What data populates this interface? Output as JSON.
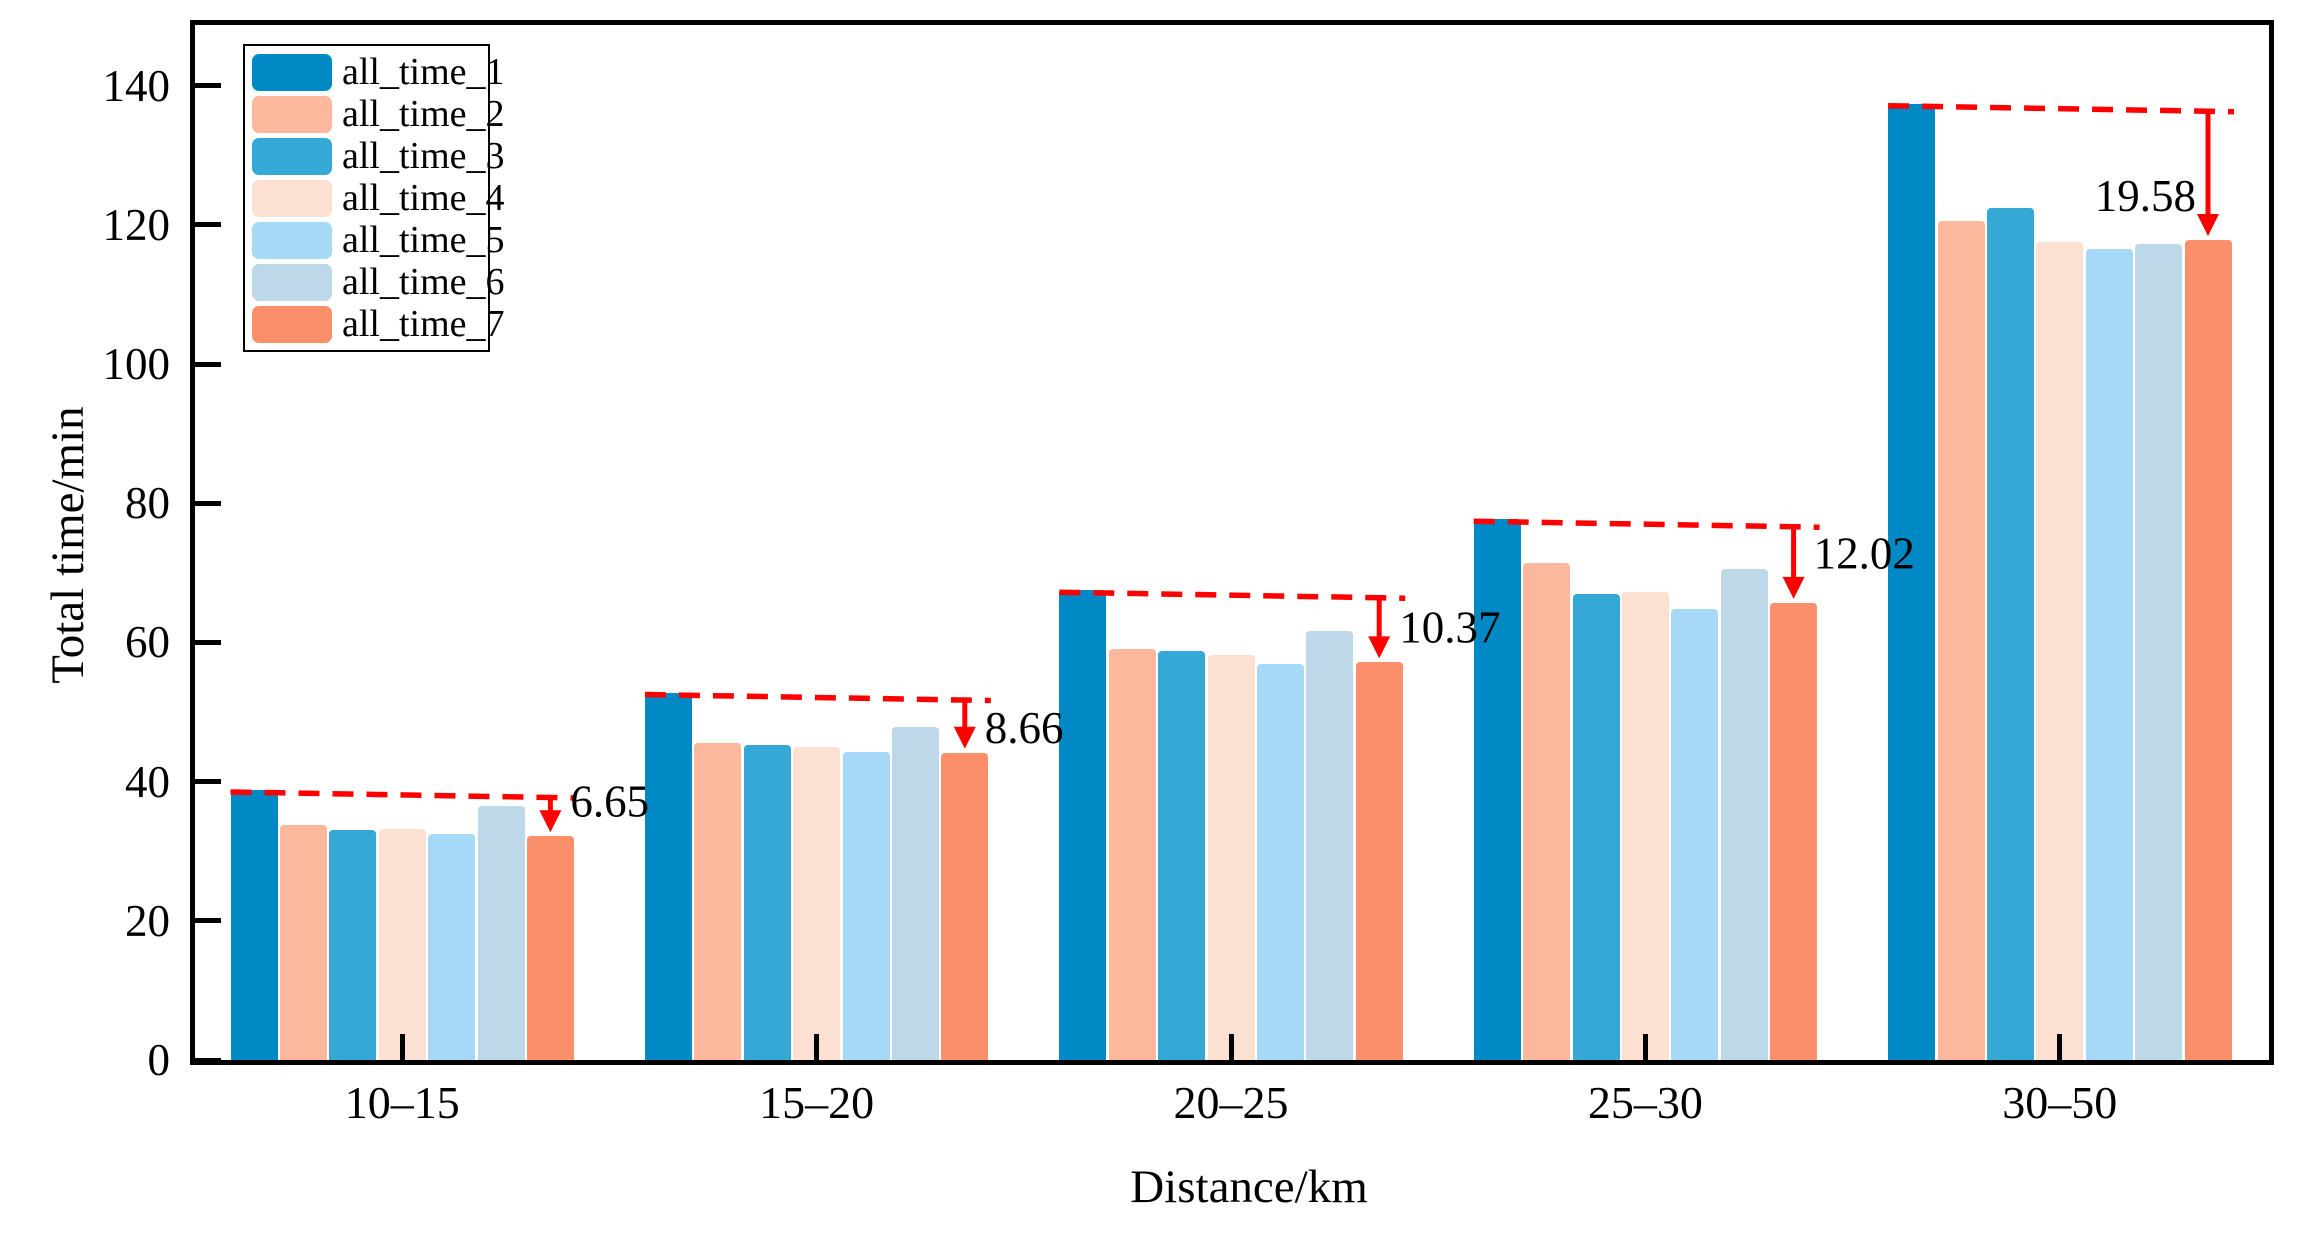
{
  "chart_data": {
    "type": "bar",
    "title": "",
    "xlabel": "Distance/km",
    "ylabel": "Total time/min",
    "categories": [
      "10–15",
      "15–20",
      "20–25",
      "25–30",
      "30–50"
    ],
    "y_ticks": [
      0,
      20,
      40,
      60,
      80,
      100,
      120,
      140
    ],
    "ylim": [
      0,
      148.7
    ],
    "grid": false,
    "legend_position": "upper-left",
    "series": [
      {
        "name": "all_time_1",
        "color": "#0089C4",
        "values": [
          38.8,
          52.8,
          67.5,
          77.7,
          137.4
        ]
      },
      {
        "name": "all_time_2",
        "color": "#FBB89C",
        "values": [
          33.7,
          45.5,
          59.0,
          71.4,
          120.6
        ]
      },
      {
        "name": "all_time_3",
        "color": "#36A8D5",
        "values": [
          33.0,
          45.3,
          58.8,
          66.9,
          122.4
        ]
      },
      {
        "name": "all_time_4",
        "color": "#FCE0D2",
        "values": [
          33.2,
          45.0,
          58.2,
          67.2,
          117.6
        ]
      },
      {
        "name": "all_time_5",
        "color": "#A6D9F7",
        "values": [
          32.4,
          44.2,
          56.9,
          64.8,
          116.5
        ]
      },
      {
        "name": "all_time_6",
        "color": "#BDD8E9",
        "values": [
          36.5,
          47.8,
          61.7,
          70.5,
          117.2
        ]
      },
      {
        "name": "all_time_7",
        "color": "#FB8E6B",
        "values": [
          32.15,
          44.14,
          57.13,
          65.68,
          117.82
        ]
      }
    ],
    "annotations": [
      {
        "group": "10–15",
        "label": "6.65"
      },
      {
        "group": "15–20",
        "label": "8.66"
      },
      {
        "group": "20–25",
        "label": "10.37"
      },
      {
        "group": "25–30",
        "label": "12.02"
      },
      {
        "group": "30–50",
        "label": "19.58"
      }
    ],
    "annotation_color": "#FF0000"
  }
}
